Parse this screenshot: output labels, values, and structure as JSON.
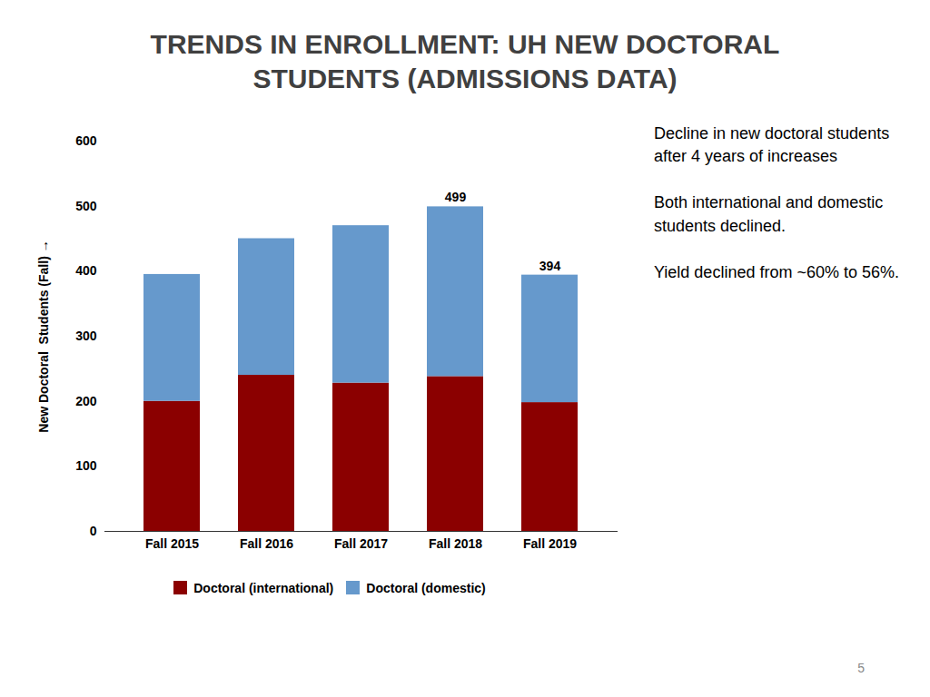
{
  "chart_data": {
    "type": "bar",
    "stacked": true,
    "title": "TRENDS IN ENROLLMENT: UH NEW DOCTORAL STUDENTS (ADMISSIONS DATA)",
    "categories": [
      "Fall 2015",
      "Fall 2016",
      "Fall 2017",
      "Fall 2018",
      "Fall 2019"
    ],
    "series": [
      {
        "name": "Doctoral (international)",
        "color": "#8B0000",
        "values": [
          200,
          240,
          228,
          238,
          198
        ]
      },
      {
        "name": "Doctoral (domestic)",
        "color": "#6699CC",
        "values": [
          195,
          210,
          242,
          261,
          196
        ]
      }
    ],
    "totals": [
      null,
      null,
      null,
      499,
      394
    ],
    "ylabel": "New Doctoral  Students (Fall)",
    "ylim": [
      0,
      600
    ],
    "yticks": [
      0,
      100,
      200,
      300,
      400,
      500,
      600
    ],
    "grid": false,
    "legend": "bottom",
    "annotations": [
      "Decline in new doctoral students after 4 years of increases",
      "Both international and domestic students declined.",
      "Yield declined from ~60% to 56%."
    ],
    "page_number": "5"
  }
}
